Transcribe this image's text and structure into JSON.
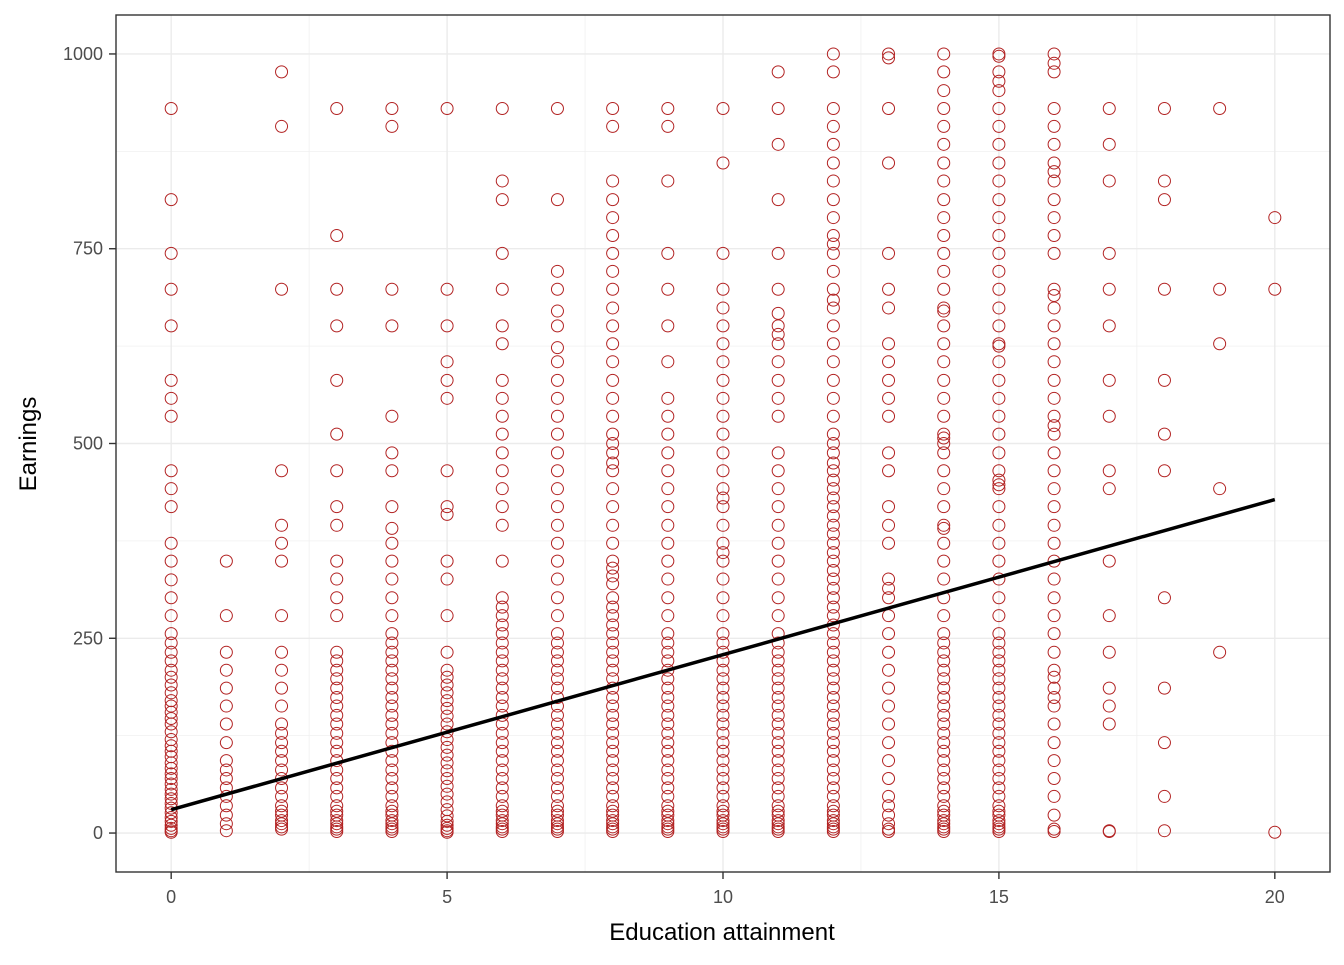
{
  "chart_data": {
    "type": "scatter",
    "title": "",
    "xlabel": "Education attainment",
    "ylabel": "Earnings",
    "xlim": [
      -1,
      21
    ],
    "ylim": [
      -50,
      1050
    ],
    "x_ticks": [
      0,
      5,
      10,
      15,
      20
    ],
    "y_ticks": [
      0,
      250,
      500,
      750,
      1000
    ],
    "x_tick_labels": [
      "0",
      "5",
      "10",
      "15",
      "20"
    ],
    "y_tick_labels": [
      "0",
      "250",
      "500",
      "750",
      "1000"
    ],
    "grid": true,
    "legend": "none",
    "point_style": {
      "shape": "open-circle",
      "color": "#B22222",
      "radius": 6
    },
    "series": [
      {
        "name": "Observations",
        "points_by_x": {
          "0": [
            930,
            813,
            744,
            698,
            651,
            581,
            558,
            535,
            465,
            442,
            419,
            372,
            349,
            325,
            302,
            279,
            256,
            244,
            232,
            221,
            209,
            200,
            190,
            180,
            170,
            163,
            155,
            147,
            140,
            130,
            120,
            112,
            105,
            98,
            90,
            83,
            76,
            70,
            63,
            56,
            50,
            44,
            38,
            32,
            26,
            20,
            15,
            10,
            6,
            3,
            1
          ],
          "1": [
            349,
            279,
            232,
            209,
            186,
            163,
            140,
            116,
            93,
            81,
            70,
            58,
            47,
            35,
            23,
            12,
            3
          ],
          "2": [
            977,
            907,
            698,
            465,
            395,
            372,
            349,
            279,
            232,
            209,
            186,
            163,
            140,
            128,
            116,
            105,
            93,
            81,
            70,
            58,
            47,
            35,
            28,
            23,
            16,
            12,
            8,
            5
          ],
          "3": [
            930,
            767,
            698,
            651,
            581,
            512,
            465,
            419,
            395,
            349,
            326,
            302,
            279,
            232,
            221,
            209,
            198,
            186,
            174,
            163,
            151,
            140,
            128,
            116,
            105,
            93,
            81,
            70,
            58,
            47,
            35,
            28,
            23,
            16,
            12,
            8,
            5,
            2
          ],
          "4": [
            930,
            907,
            698,
            651,
            535,
            488,
            465,
            419,
            391,
            372,
            349,
            326,
            302,
            279,
            256,
            244,
            232,
            221,
            209,
            198,
            186,
            174,
            163,
            151,
            140,
            128,
            116,
            105,
            93,
            81,
            70,
            58,
            47,
            35,
            28,
            23,
            16,
            12,
            8,
            5,
            2
          ],
          "5": [
            930,
            698,
            651,
            605,
            581,
            558,
            465,
            419,
            409,
            349,
            326,
            279,
            232,
            209,
            200,
            190,
            180,
            170,
            160,
            150,
            140,
            130,
            120,
            110,
            100,
            90,
            80,
            70,
            60,
            50,
            40,
            30,
            22,
            15,
            10,
            6,
            3,
            1
          ],
          "6": [
            930,
            837,
            813,
            744,
            698,
            651,
            628,
            581,
            558,
            535,
            512,
            488,
            465,
            442,
            419,
            395,
            349,
            302,
            290,
            279,
            267,
            256,
            244,
            232,
            221,
            209,
            198,
            186,
            174,
            163,
            151,
            140,
            128,
            116,
            105,
            93,
            81,
            70,
            58,
            47,
            35,
            28,
            23,
            16,
            12,
            8,
            5,
            2
          ],
          "7": [
            930,
            813,
            721,
            698,
            670,
            651,
            623,
            605,
            581,
            558,
            535,
            512,
            488,
            465,
            442,
            419,
            395,
            372,
            349,
            326,
            302,
            279,
            256,
            244,
            232,
            221,
            209,
            198,
            186,
            174,
            163,
            151,
            140,
            128,
            116,
            105,
            93,
            81,
            70,
            58,
            47,
            35,
            28,
            23,
            16,
            12,
            8,
            5,
            2
          ],
          "8": [
            930,
            907,
            837,
            813,
            790,
            767,
            744,
            721,
            698,
            674,
            651,
            628,
            605,
            581,
            558,
            535,
            512,
            500,
            488,
            475,
            465,
            442,
            419,
            395,
            372,
            349,
            340,
            330,
            320,
            302,
            290,
            279,
            267,
            256,
            244,
            232,
            221,
            209,
            198,
            186,
            174,
            163,
            151,
            140,
            128,
            116,
            105,
            93,
            81,
            70,
            58,
            47,
            35,
            28,
            23,
            16,
            12,
            8,
            5,
            2
          ],
          "9": [
            930,
            907,
            837,
            744,
            698,
            651,
            605,
            558,
            535,
            512,
            488,
            465,
            442,
            419,
            395,
            372,
            349,
            326,
            302,
            279,
            256,
            244,
            232,
            221,
            209,
            198,
            186,
            174,
            163,
            151,
            140,
            128,
            116,
            105,
            93,
            81,
            70,
            58,
            47,
            35,
            28,
            23,
            16,
            12,
            8,
            5,
            2
          ],
          "10": [
            930,
            860,
            744,
            698,
            674,
            651,
            628,
            605,
            581,
            558,
            535,
            512,
            488,
            465,
            442,
            430,
            419,
            395,
            372,
            360,
            349,
            326,
            302,
            279,
            256,
            244,
            232,
            221,
            209,
            198,
            186,
            174,
            163,
            151,
            140,
            128,
            116,
            105,
            93,
            81,
            70,
            58,
            47,
            35,
            28,
            23,
            16,
            12,
            8,
            5,
            2
          ],
          "11": [
            977,
            930,
            884,
            813,
            744,
            698,
            667,
            651,
            640,
            628,
            605,
            581,
            558,
            535,
            488,
            465,
            442,
            419,
            395,
            372,
            349,
            326,
            302,
            279,
            256,
            244,
            232,
            221,
            209,
            198,
            186,
            174,
            163,
            151,
            140,
            128,
            116,
            105,
            93,
            81,
            70,
            58,
            47,
            35,
            28,
            23,
            16,
            12,
            8,
            5,
            2
          ],
          "12": [
            1000,
            977,
            930,
            907,
            884,
            860,
            837,
            813,
            790,
            767,
            756,
            744,
            721,
            698,
            684,
            674,
            651,
            628,
            605,
            581,
            558,
            535,
            512,
            500,
            488,
            475,
            465,
            453,
            442,
            430,
            419,
            407,
            395,
            384,
            372,
            360,
            349,
            337,
            326,
            314,
            302,
            290,
            279,
            267,
            256,
            244,
            232,
            221,
            209,
            198,
            186,
            174,
            163,
            151,
            140,
            128,
            116,
            105,
            93,
            81,
            70,
            58,
            47,
            35,
            28,
            23,
            16,
            12,
            8,
            5,
            2
          ],
          "13": [
            1000,
            995,
            930,
            860,
            744,
            698,
            674,
            628,
            605,
            581,
            558,
            535,
            488,
            465,
            419,
            395,
            372,
            326,
            314,
            302,
            279,
            256,
            232,
            209,
            186,
            163,
            140,
            116,
            93,
            70,
            47,
            35,
            23,
            12,
            5,
            2
          ],
          "14": [
            1000,
            977,
            953,
            930,
            907,
            884,
            860,
            837,
            813,
            790,
            767,
            744,
            721,
            698,
            674,
            670,
            651,
            628,
            605,
            581,
            558,
            535,
            512,
            507,
            500,
            488,
            465,
            442,
            419,
            395,
            391,
            372,
            349,
            326,
            302,
            279,
            256,
            244,
            232,
            221,
            209,
            198,
            186,
            174,
            163,
            151,
            140,
            128,
            116,
            105,
            93,
            81,
            70,
            58,
            47,
            35,
            28,
            23,
            16,
            12,
            8,
            5,
            2
          ],
          "15": [
            1000,
            997,
            977,
            965,
            953,
            930,
            907,
            884,
            860,
            837,
            813,
            790,
            767,
            744,
            721,
            698,
            674,
            651,
            628,
            625,
            605,
            581,
            558,
            535,
            512,
            488,
            465,
            453,
            447,
            442,
            419,
            395,
            372,
            349,
            326,
            302,
            279,
            256,
            244,
            232,
            221,
            209,
            198,
            186,
            174,
            163,
            151,
            140,
            128,
            116,
            105,
            93,
            81,
            70,
            58,
            47,
            35,
            28,
            23,
            16,
            12,
            8,
            5,
            2
          ],
          "16": [
            1000,
            988,
            977,
            930,
            907,
            884,
            860,
            849,
            837,
            813,
            790,
            767,
            744,
            698,
            690,
            674,
            651,
            628,
            605,
            581,
            558,
            535,
            523,
            512,
            488,
            465,
            442,
            419,
            395,
            372,
            349,
            326,
            302,
            279,
            256,
            232,
            209,
            200,
            186,
            174,
            163,
            140,
            116,
            93,
            70,
            47,
            23,
            5,
            2
          ],
          "17": [
            930,
            884,
            837,
            744,
            698,
            651,
            581,
            535,
            465,
            442,
            349,
            279,
            232,
            186,
            163,
            140,
            3,
            2
          ],
          "18": [
            930,
            837,
            813,
            698,
            581,
            512,
            465,
            302,
            186,
            116,
            47,
            3
          ],
          "19": [
            930,
            698,
            628,
            442,
            232
          ],
          "20": [
            790,
            698,
            1
          ]
        }
      }
    ],
    "regression_line": {
      "x": [
        0,
        20
      ],
      "y": [
        30,
        428
      ],
      "color": "#000000",
      "width": 3.5
    }
  }
}
